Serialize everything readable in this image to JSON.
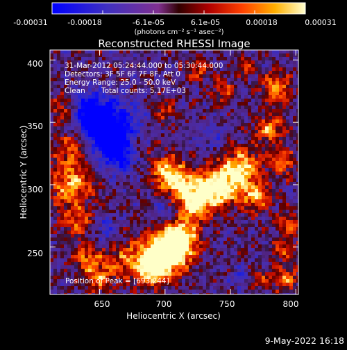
{
  "colorbar": {
    "ticks": [
      "-0.00031",
      "-0.00018",
      "-6.1e-05",
      "6.1e-05",
      "0.00018",
      "0.00031"
    ],
    "unit_label": "(photons cm⁻² s⁻¹ asec⁻²)",
    "range": [
      -0.00031,
      0.00031
    ]
  },
  "chart_data": {
    "type": "heatmap",
    "title": "Reconstructed RHESSI Image",
    "xlabel": "Heliocentric X (arcsec)",
    "ylabel": "Heliocentric Y (arcsec)",
    "xlim": [
      612,
      802
    ],
    "ylim": [
      212,
      408
    ],
    "xticks": [
      "650",
      "700",
      "750",
      "800"
    ],
    "yticks": [
      "250",
      "300",
      "350",
      "400"
    ],
    "xtick_values": [
      650,
      700,
      750,
      800
    ],
    "ytick_values": [
      250,
      300,
      350,
      400
    ],
    "annotations": {
      "time_range": "31-Mar-2012 05:24:44.000 to 05:30:44.000",
      "detectors": "Detectors: 3F 5F 6F 7F 8F, Att 0",
      "energy_range": "Energy Range: 25.0 - 50.0 keV",
      "method": "Clean",
      "total_counts": "Total counts: 5.17E+03",
      "peak_position": "Position of Peak = [693,244]"
    }
  },
  "footer": {
    "date": "9-May-2022 16:18"
  }
}
